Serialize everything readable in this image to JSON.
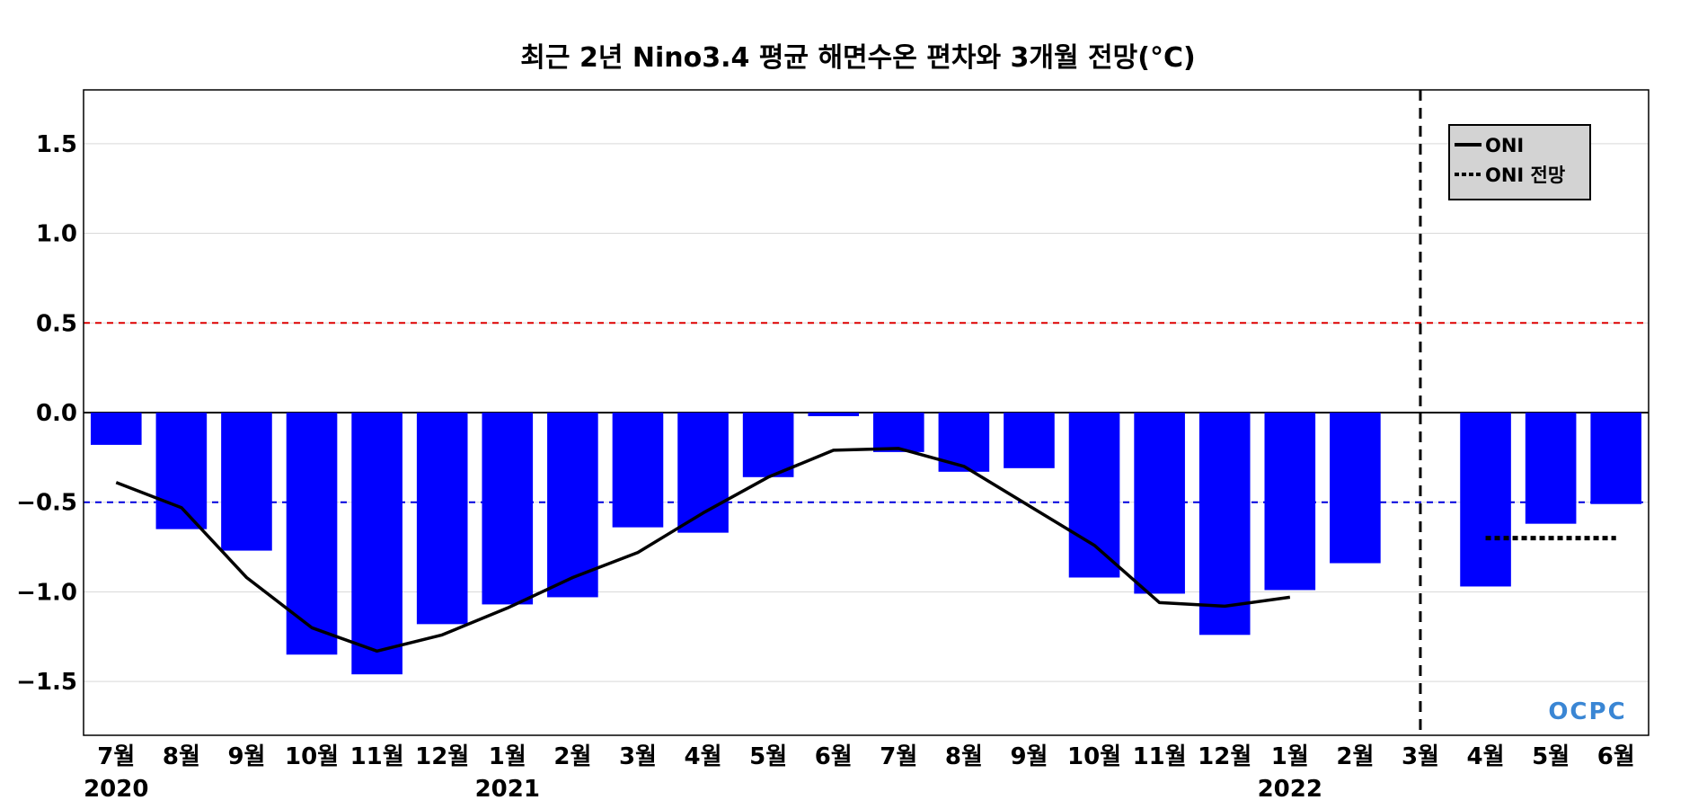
{
  "chart_data": {
    "type": "bar",
    "title": "최근 2년 Nino3.4 평균 해면수온 편차와 3개월 전망(°C)",
    "categories": [
      "7월",
      "8월",
      "9월",
      "10월",
      "11월",
      "12월",
      "1월",
      "2월",
      "3월",
      "4월",
      "5월",
      "6월",
      "7월",
      "8월",
      "9월",
      "10월",
      "11월",
      "12월",
      "1월",
      "2월",
      "3월",
      "4월",
      "5월",
      "6월"
    ],
    "year_labels": [
      {
        "index": 0,
        "label": "2020"
      },
      {
        "index": 6,
        "label": "2021"
      },
      {
        "index": 18,
        "label": "2022"
      }
    ],
    "ylim": [
      -1.8,
      1.8
    ],
    "yticks": [
      1.5,
      1.0,
      0.5,
      0.0,
      -0.5,
      -1.0,
      -1.5
    ],
    "ytick_labels": [
      "1.5",
      "1.0",
      "0.5",
      "0.0",
      "−0.5",
      "−1.0",
      "−1.5"
    ],
    "grid": true,
    "series": [
      {
        "kind": "bar",
        "color": "#0000ff",
        "values": [
          -0.18,
          -0.65,
          -0.77,
          -1.35,
          -1.46,
          -1.18,
          -1.07,
          -1.03,
          -0.64,
          -0.67,
          -0.36,
          -0.02,
          -0.22,
          -0.33,
          -0.31,
          -0.92,
          -1.01,
          -1.24,
          -0.99,
          -0.84,
          null,
          -0.97,
          -0.62,
          -0.51
        ]
      },
      {
        "name": "ONI",
        "kind": "line",
        "style": "solid",
        "color": "#000000",
        "values": [
          -0.39,
          -0.53,
          -0.92,
          -1.2,
          -1.33,
          -1.24,
          -1.09,
          -0.92,
          -0.78,
          -0.56,
          -0.36,
          -0.21,
          -0.2,
          -0.3,
          -0.52,
          -0.74,
          -1.06,
          -1.08,
          -1.03,
          null,
          null,
          null,
          null,
          null
        ]
      },
      {
        "name": "ONI 전망",
        "kind": "line",
        "style": "dotted",
        "color": "#000000",
        "x_range": [
          21,
          23
        ],
        "value": -0.7
      }
    ],
    "reference_lines": [
      {
        "y": 0.5,
        "color": "#dd0000",
        "style": "dashed"
      },
      {
        "y": -0.5,
        "color": "#0000dd",
        "style": "dashed"
      },
      {
        "y": 0.0,
        "color": "#000000",
        "style": "solid"
      }
    ],
    "forecast_divider": {
      "index": 20,
      "style": "dashed",
      "color": "#000000"
    },
    "legend": {
      "placement": "top-right",
      "entries": [
        "ONI",
        "ONI 전망"
      ]
    },
    "logo_text": "OCPC"
  }
}
